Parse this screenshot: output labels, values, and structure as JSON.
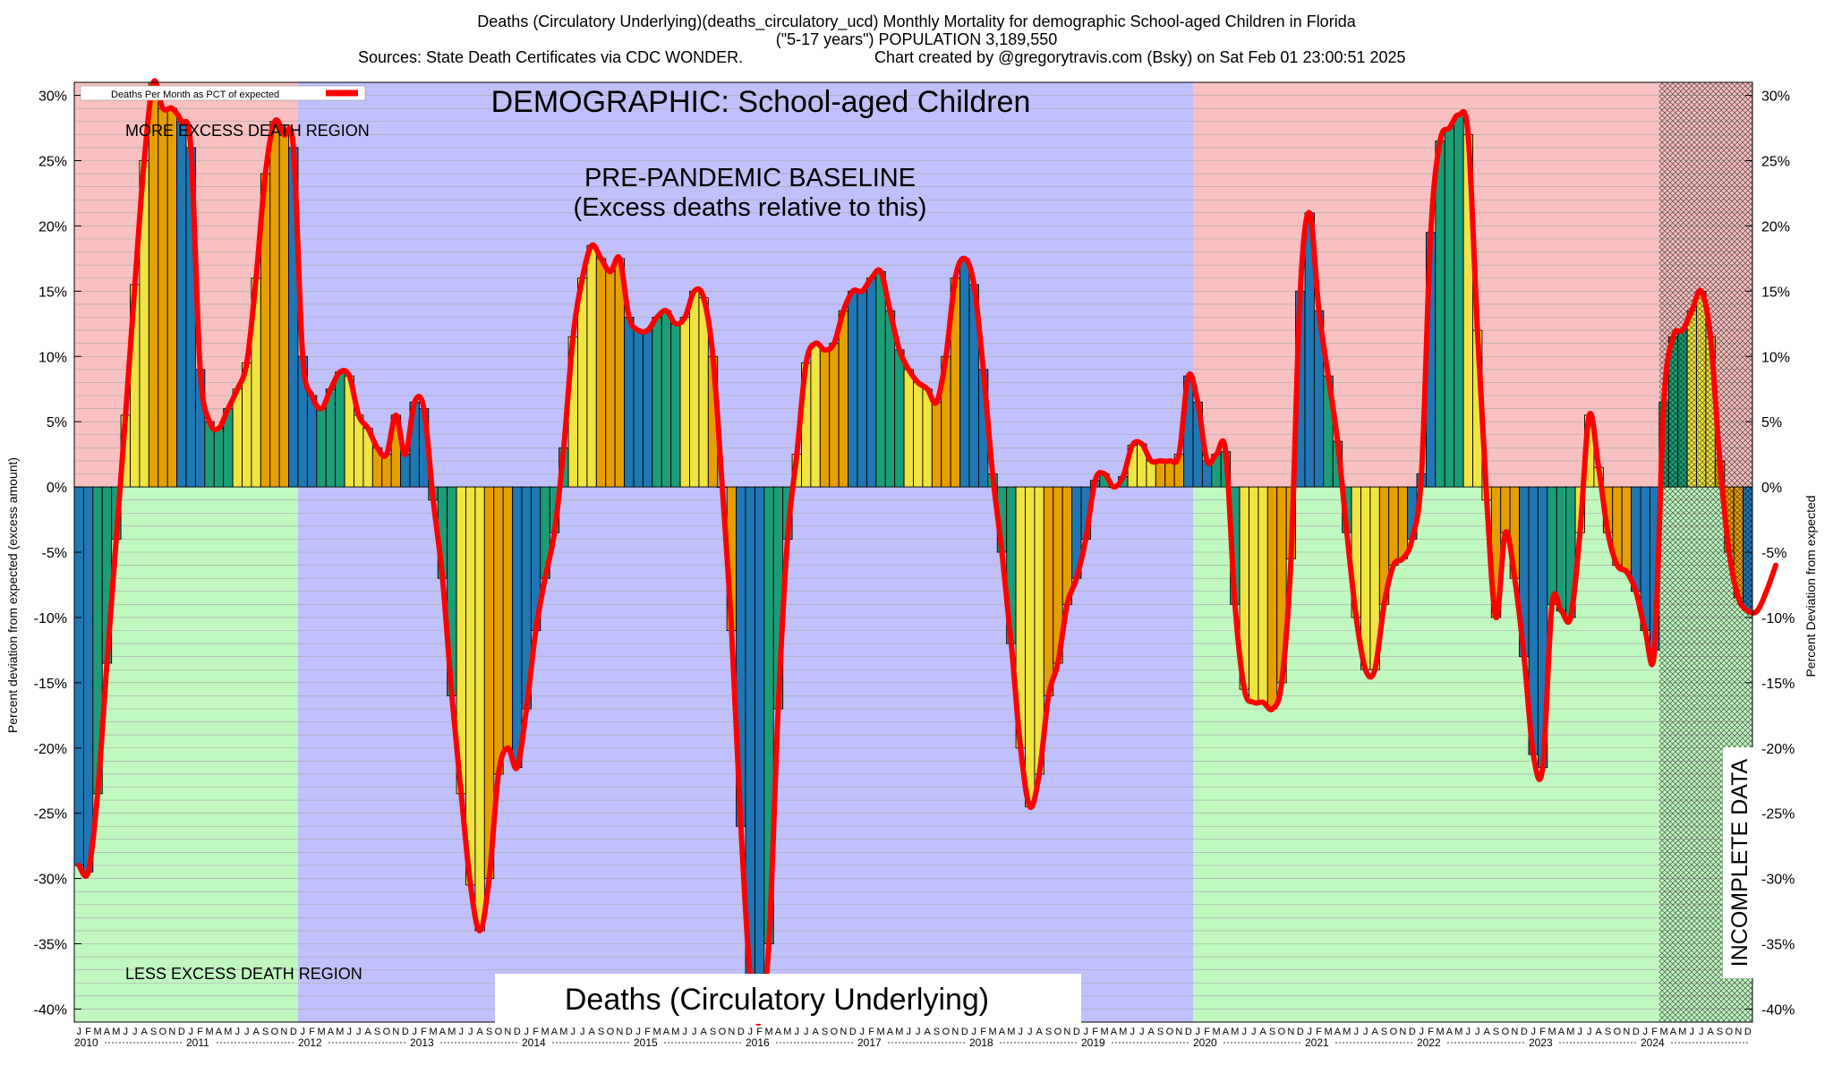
{
  "chart_data": {
    "type": "bar",
    "title": "Deaths (Circulatory Underlying)(deaths_circulatory_ucd) Monthly Mortality for demographic School-aged Children in Florida",
    "subtitle": "(\"5-17 years\") POPULATION 3,189,550",
    "sources": "Sources: State Death Certificates via CDC WONDER.",
    "credit": "Chart created by @gregorytravis.com (Bsky) on Sat Feb 01 23:00:51 2025",
    "ylabel_left": "Percent deviation from expected (excess amount)",
    "ylabel_right": "Percent Deviation from expected",
    "ylim": [
      -41,
      31
    ],
    "y_ticks": [
      30,
      25,
      20,
      15,
      10,
      5,
      0,
      -5,
      -10,
      -15,
      -20,
      -25,
      -30,
      -35,
      -40
    ],
    "y_tick_labels": [
      "30%",
      "25%",
      "20%",
      "15%",
      "10%",
      "5%",
      "0%",
      "-5%",
      "-10%",
      "-15%",
      "-20%",
      "-25%",
      "-30%",
      "-35%",
      "-40%"
    ],
    "legend": {
      "label": "Deaths Per Month as PCT of expected",
      "color": "#ff0000",
      "position": "top-left"
    },
    "years": [
      "2010",
      "2011",
      "2012",
      "2013",
      "2014",
      "2015",
      "2016",
      "2017",
      "2018",
      "2019",
      "2020",
      "2021",
      "2022",
      "2023",
      "2024"
    ],
    "month_letters": [
      "J",
      "F",
      "M",
      "A",
      "M",
      "J",
      "J",
      "A",
      "S",
      "O",
      "N",
      "D"
    ],
    "season_colors": {
      "winter": "#1f77b4",
      "spring": "#1b9e77",
      "summer": "#f0e442",
      "fall": "#e69f00"
    },
    "annotations": {
      "demographic": "DEMOGRAPHIC: School-aged Children",
      "baseline_line1": "PRE-PANDEMIC BASELINE",
      "baseline_line2": "(Excess deaths relative to this)",
      "more_excess": "MORE EXCESS DEATH REGION",
      "less_excess": "LESS EXCESS DEATH REGION",
      "cause_label": "Deaths (Circulatory Underlying)",
      "incomplete": "INCOMPLETE DATA"
    },
    "regions": [
      {
        "name": "pre-baseline",
        "start_year": 2010,
        "end_year": 2012,
        "colors_above": "#f8c0c0",
        "colors_below": "#c0f8c0"
      },
      {
        "name": "baseline",
        "start_year": 2012,
        "end_year": 2020,
        "color": "#c0c0fc"
      },
      {
        "name": "post-baseline",
        "start_year": 2020,
        "end_year": 2024.16,
        "colors_above": "#f8c0c0",
        "colors_below": "#c0f8c0"
      },
      {
        "name": "incomplete",
        "start_year": 2024.16,
        "end_year": 2025
      }
    ],
    "series": [
      {
        "name": "Deaths Per Month as PCT of expected",
        "start": "2010-01",
        "values": [
          -29,
          -29.5,
          -23.5,
          -13.5,
          -4,
          5.5,
          15.5,
          25,
          31,
          29,
          29,
          28,
          26,
          9,
          5,
          4.5,
          6,
          7.5,
          9.5,
          16,
          24,
          28,
          27,
          26,
          10,
          7,
          6,
          7.5,
          8.8,
          8.5,
          5.5,
          4.5,
          3,
          2.5,
          5.5,
          2.5,
          6.5,
          6,
          -1,
          -7,
          -16,
          -23.5,
          -30.5,
          -34,
          -30,
          -22,
          -20,
          -21.5,
          -17,
          -11,
          -7,
          -3.5,
          3,
          11.5,
          16,
          18.5,
          17.5,
          16.5,
          17.5,
          13,
          12,
          12,
          13,
          13.5,
          12.5,
          13,
          15,
          14.5,
          10,
          0,
          -11,
          -26,
          -37.5,
          -41,
          -35,
          -17,
          -4,
          2.5,
          9.5,
          11,
          10.5,
          11,
          13.5,
          15,
          15,
          16,
          16.5,
          13.5,
          10.5,
          9,
          8,
          7.5,
          6.5,
          10,
          16,
          17.5,
          15.5,
          9,
          1,
          -5,
          -12,
          -20,
          -24.5,
          -22,
          -16,
          -13.5,
          -9,
          -7,
          -4,
          0.5,
          1,
          0,
          0.8,
          3.2,
          3.3,
          2,
          2,
          2,
          2.5,
          8.5,
          6.5,
          2,
          2.5,
          2.7,
          -9,
          -15.5,
          -16.5,
          -16.5,
          -17,
          -15,
          -5.5,
          15,
          21,
          13.5,
          8.5,
          3.5,
          -3.5,
          -10,
          -14,
          -14,
          -9,
          -6,
          -5.5,
          -4,
          1,
          19.5,
          26.5,
          27.5,
          28.5,
          27,
          12,
          -1,
          -10,
          -3.5,
          -7,
          -13,
          -20.5,
          -21.5,
          -9,
          -9.5,
          -10,
          -3.5,
          5.5,
          1.5,
          -3.5,
          -6,
          -6.5,
          -8,
          -11,
          -12.5,
          6.5,
          11.5,
          12,
          13.5,
          15,
          11.5,
          2,
          -5,
          -8.5,
          -9.5,
          -9.5,
          -8,
          -6
        ]
      }
    ]
  }
}
